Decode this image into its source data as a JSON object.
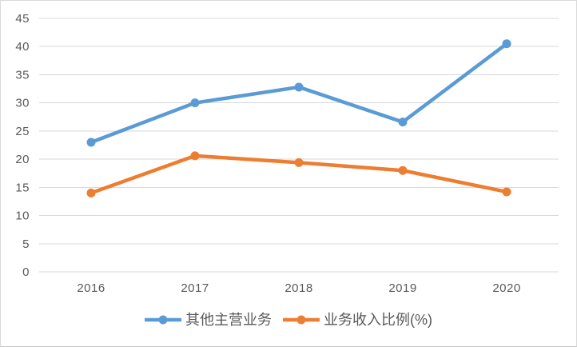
{
  "chart_data": {
    "type": "line",
    "title": "",
    "xlabel": "",
    "ylabel": "",
    "categories": [
      "2016",
      "2017",
      "2018",
      "2019",
      "2020"
    ],
    "series": [
      {
        "name": "其他主营业务",
        "color": "#5B9BD5",
        "values": [
          23.0,
          30.0,
          32.8,
          26.6,
          40.5
        ]
      },
      {
        "name": "业务收入比例(%)",
        "color": "#ED7D31",
        "values": [
          14.0,
          20.6,
          19.4,
          18.0,
          14.2
        ]
      }
    ],
    "ylim": [
      0,
      45
    ],
    "yticks": [
      0,
      5,
      10,
      15,
      20,
      25,
      30,
      35,
      40,
      45
    ],
    "grid": true,
    "legend_position": "bottom",
    "marker": "circle"
  },
  "theme": {
    "background": "#FFFFFF",
    "gridline_color": "#D9D9D9",
    "axis_text_color": "#595959",
    "border_color": "#D9D9D9"
  },
  "icons": {
    "legend_marker": "line-with-dot-icon"
  }
}
